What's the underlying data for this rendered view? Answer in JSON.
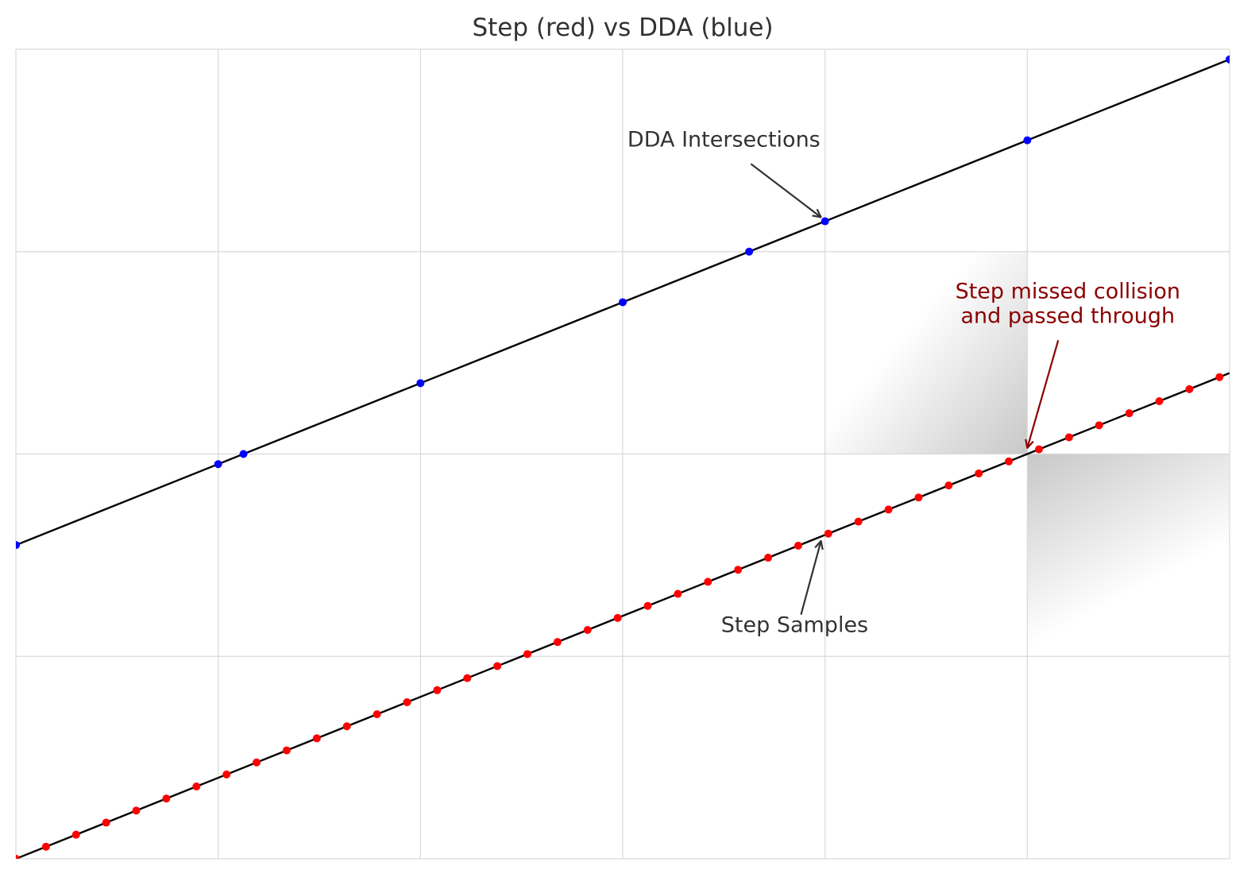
{
  "chart_data": {
    "type": "scatter",
    "title": "Step (red) vs DDA (blue)",
    "xlim": [
      0,
      6
    ],
    "ylim": [
      0,
      4
    ],
    "grid": true,
    "grid_x": [
      0,
      1,
      2,
      3,
      4,
      5,
      6
    ],
    "grid_y": [
      0,
      1,
      2,
      3,
      4
    ],
    "series": [
      {
        "name": "DDA",
        "color": "#0000ff",
        "line_color": "#000000",
        "line": {
          "x0": 0,
          "y0": 1.55,
          "x1": 6,
          "y1": 3.95
        },
        "points": [
          {
            "x": 0,
            "y": 1.55
          },
          {
            "x": 1,
            "y": 1.95
          },
          {
            "x": 1.125,
            "y": 2.0
          },
          {
            "x": 2,
            "y": 2.35
          },
          {
            "x": 3,
            "y": 2.75
          },
          {
            "x": 3.625,
            "y": 3.0
          },
          {
            "x": 4,
            "y": 3.15
          },
          {
            "x": 5,
            "y": 3.55
          },
          {
            "x": 6,
            "y": 3.95
          }
        ]
      },
      {
        "name": "Step",
        "color": "#ff0000",
        "line_color": "#000000",
        "line": {
          "x0": 0,
          "y0": 0,
          "x1": 6,
          "y1": 2.4
        },
        "step": 0.14875,
        "count": 41
      }
    ],
    "shaded_regions": [
      {
        "cell": [
          4,
          5,
          2,
          3
        ],
        "fade_from": "bottom-right",
        "color": "#c8c8c8"
      },
      {
        "cell": [
          5,
          6,
          1,
          2
        ],
        "fade_from": "top-left",
        "color": "#c8c8c8"
      }
    ],
    "annotations": [
      {
        "id": "dda-intersections",
        "text": [
          "DDA Intersections"
        ],
        "color": "#333333",
        "text_at": {
          "x": 3.5,
          "y": 3.52
        },
        "arrow_to": {
          "x": 3.98,
          "y": 3.17
        }
      },
      {
        "id": "step-missed",
        "text": [
          "Step missed collision",
          "and passed through"
        ],
        "color": "#8b0000",
        "text_at": {
          "x": 5.2,
          "y": 2.77
        },
        "arrow_to": {
          "x": 5.0,
          "y": 2.03
        }
      },
      {
        "id": "step-samples",
        "text": [
          "Step Samples"
        ],
        "color": "#333333",
        "text_at": {
          "x": 3.85,
          "y": 1.12
        },
        "arrow_to": {
          "x": 3.98,
          "y": 1.57
        }
      }
    ]
  }
}
